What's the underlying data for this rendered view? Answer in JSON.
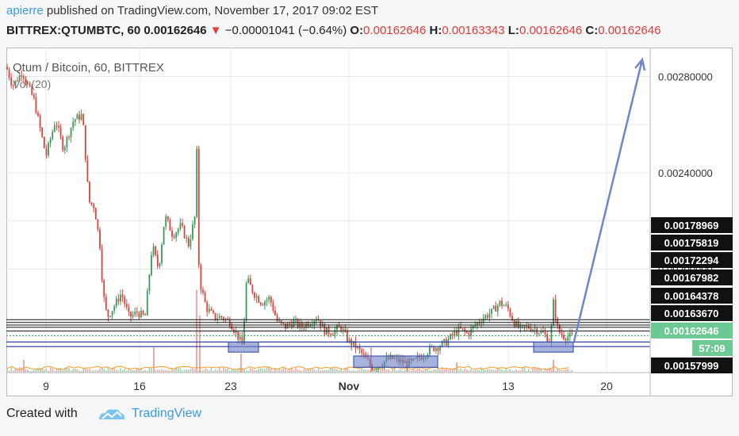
{
  "header": {
    "user": "apierre",
    "published_text": " published on TradingView.com, November 17, 2017 09:02 EST",
    "symbol": "BITTREX:QTUMBTC, 60 ",
    "last": "0.00162646 ",
    "down_arrow": "▼",
    "change": " −0.00001041 (−0.64%) ",
    "o_label": "O:",
    "o_value": "0.00162646 ",
    "h_label": "H:",
    "h_value": "0.00163343 ",
    "l_label": "L:",
    "l_value": "0.00162646 ",
    "c_label": "C:",
    "c_value": "0.00162646"
  },
  "chart_data": {
    "type": "candlestick",
    "title": "Qtum / Bitcoin, 60, BITTREX",
    "indicator_label": "Vol (20)",
    "x_tick_labels": [
      "9",
      "16",
      "23",
      "Nov",
      "13",
      "20"
    ],
    "y_tick_labels": [
      "0.00280000",
      "0.00240000",
      "0.00200000"
    ],
    "ylim": [
      0.00157,
      0.00292
    ],
    "price_level_labels": [
      "0.00178969",
      "0.00175819",
      "0.00172294",
      "0.00167982",
      "0.00164378",
      "0.00163670",
      "0.00162646",
      "0.00157999"
    ],
    "countdown": "57:09",
    "black_levels": [
      0.0017897,
      0.0017784,
      0.0017675,
      0.0017582,
      0.0017425
    ],
    "blue_levels": [
      0.001697,
      0.001678
    ],
    "dotted_level": 0.0017229,
    "price_path": [
      [
        0,
        0.00284
      ],
      [
        8,
        0.00276
      ],
      [
        20,
        0.00282
      ],
      [
        35,
        0.0027
      ],
      [
        50,
        0.00247
      ],
      [
        62,
        0.00262
      ],
      [
        72,
        0.0025
      ],
      [
        85,
        0.00262
      ],
      [
        96,
        0.00264
      ],
      [
        104,
        0.00228
      ],
      [
        111,
        0.00226
      ],
      [
        118,
        0.0021
      ],
      [
        122,
        0.0019
      ],
      [
        127,
        0.0018
      ],
      [
        135,
        0.00184
      ],
      [
        145,
        0.0019
      ],
      [
        155,
        0.0018
      ],
      [
        165,
        0.00182
      ],
      [
        175,
        0.0018
      ],
      [
        184,
        0.0021
      ],
      [
        192,
        0.002
      ],
      [
        200,
        0.00222
      ],
      [
        210,
        0.00214
      ],
      [
        220,
        0.00218
      ],
      [
        230,
        0.0021
      ],
      [
        238,
        0.00222
      ],
      [
        241,
        0.00258
      ],
      [
        243,
        0.00196
      ],
      [
        252,
        0.00184
      ],
      [
        262,
        0.0018
      ],
      [
        272,
        0.0018
      ],
      [
        282,
        0.00178
      ],
      [
        292,
        0.00172
      ],
      [
        298,
        0.00168
      ],
      [
        303,
        0.00196
      ],
      [
        312,
        0.0019
      ],
      [
        322,
        0.00186
      ],
      [
        332,
        0.00188
      ],
      [
        342,
        0.00178
      ],
      [
        352,
        0.00176
      ],
      [
        362,
        0.00178
      ],
      [
        372,
        0.00176
      ],
      [
        382,
        0.00178
      ],
      [
        392,
        0.0018
      ],
      [
        402,
        0.00174
      ],
      [
        412,
        0.00174
      ],
      [
        422,
        0.00176
      ],
      [
        428,
        0.00172
      ],
      [
        432,
        0.0017
      ],
      [
        440,
        0.00168
      ],
      [
        448,
        0.00165
      ],
      [
        452,
        0.00163
      ],
      [
        457,
        0.00161
      ],
      [
        462,
        0.00159
      ],
      [
        470,
        0.0016
      ],
      [
        478,
        0.00162
      ],
      [
        486,
        0.00163
      ],
      [
        494,
        0.00162
      ],
      [
        502,
        0.00161
      ],
      [
        512,
        0.00161
      ],
      [
        520,
        0.00163
      ],
      [
        528,
        0.00165
      ],
      [
        536,
        0.00167
      ],
      [
        546,
        0.00168
      ],
      [
        556,
        0.0017
      ],
      [
        564,
        0.00173
      ],
      [
        572,
        0.00175
      ],
      [
        582,
        0.00173
      ],
      [
        592,
        0.00177
      ],
      [
        602,
        0.0018
      ],
      [
        612,
        0.00182
      ],
      [
        622,
        0.00186
      ],
      [
        632,
        0.00184
      ],
      [
        640,
        0.00178
      ],
      [
        648,
        0.00175
      ],
      [
        658,
        0.00176
      ],
      [
        668,
        0.00175
      ],
      [
        678,
        0.00173
      ],
      [
        686,
        0.0017
      ],
      [
        690,
        0.00186
      ],
      [
        696,
        0.00174
      ],
      [
        704,
        0.00172
      ],
      [
        712,
        0.00172
      ]
    ],
    "volume_spikes": [
      [
        22,
        0.1
      ],
      [
        186,
        0.2
      ],
      [
        240,
        0.65
      ],
      [
        244,
        0.45
      ],
      [
        296,
        0.15
      ],
      [
        460,
        0.2
      ],
      [
        568,
        0.08
      ],
      [
        690,
        0.1
      ]
    ],
    "zones": [
      {
        "x0": 280,
        "x1": 318,
        "y0": 0.001697,
        "y1": 0.001655
      },
      {
        "x0": 438,
        "x1": 544,
        "y0": 0.001639,
        "y1": 0.001592
      },
      {
        "x0": 665,
        "x1": 715,
        "y0": 0.001697,
        "y1": 0.001655
      }
    ],
    "arrow": {
      "from": [
        716,
        0.0017
      ],
      "to": [
        802,
        0.00287
      ]
    }
  },
  "footer": {
    "created_with": "Created with",
    "brand": "TradingView"
  },
  "colors": {
    "up": "#3a9a5a",
    "down": "#e0403b",
    "link": "#3c9be0",
    "zone_fill": "#6d80c4",
    "zone_stroke": "#2e44a6",
    "arrow": "#6f86c9",
    "last_price_bg": "#6cc992"
  }
}
